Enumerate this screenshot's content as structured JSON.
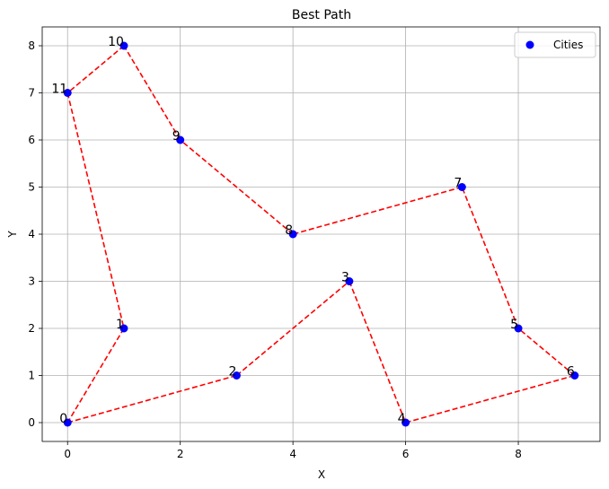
{
  "chart_data": {
    "type": "scatter",
    "title": "Best Path",
    "xlabel": "X",
    "ylabel": "Y",
    "xlim": [
      -0.45,
      9.45
    ],
    "ylim": [
      -0.4,
      8.4
    ],
    "xticks": [
      0,
      2,
      4,
      6,
      8
    ],
    "yticks": [
      0,
      1,
      2,
      3,
      4,
      5,
      6,
      7,
      8
    ],
    "grid": true,
    "legend_position": "top-right",
    "series": [
      {
        "name": "Cities",
        "type": "scatter",
        "color": "#0000ff",
        "points": [
          {
            "label": "0",
            "x": 0,
            "y": 0
          },
          {
            "label": "1",
            "x": 1,
            "y": 2
          },
          {
            "label": "2",
            "x": 3,
            "y": 1
          },
          {
            "label": "3",
            "x": 5,
            "y": 3
          },
          {
            "label": "4",
            "x": 6,
            "y": 0
          },
          {
            "label": "5",
            "x": 8,
            "y": 2
          },
          {
            "label": "6",
            "x": 9,
            "y": 1
          },
          {
            "label": "7",
            "x": 7,
            "y": 5
          },
          {
            "label": "8",
            "x": 4,
            "y": 4
          },
          {
            "label": "9",
            "x": 2,
            "y": 6
          },
          {
            "label": "10",
            "x": 1,
            "y": 8
          },
          {
            "label": "11",
            "x": 0,
            "y": 7
          }
        ]
      }
    ],
    "path": {
      "color": "#ff0000",
      "style": "dashed",
      "order": [
        0,
        2,
        3,
        4,
        6,
        5,
        7,
        8,
        9,
        10,
        11,
        1,
        0
      ]
    }
  }
}
